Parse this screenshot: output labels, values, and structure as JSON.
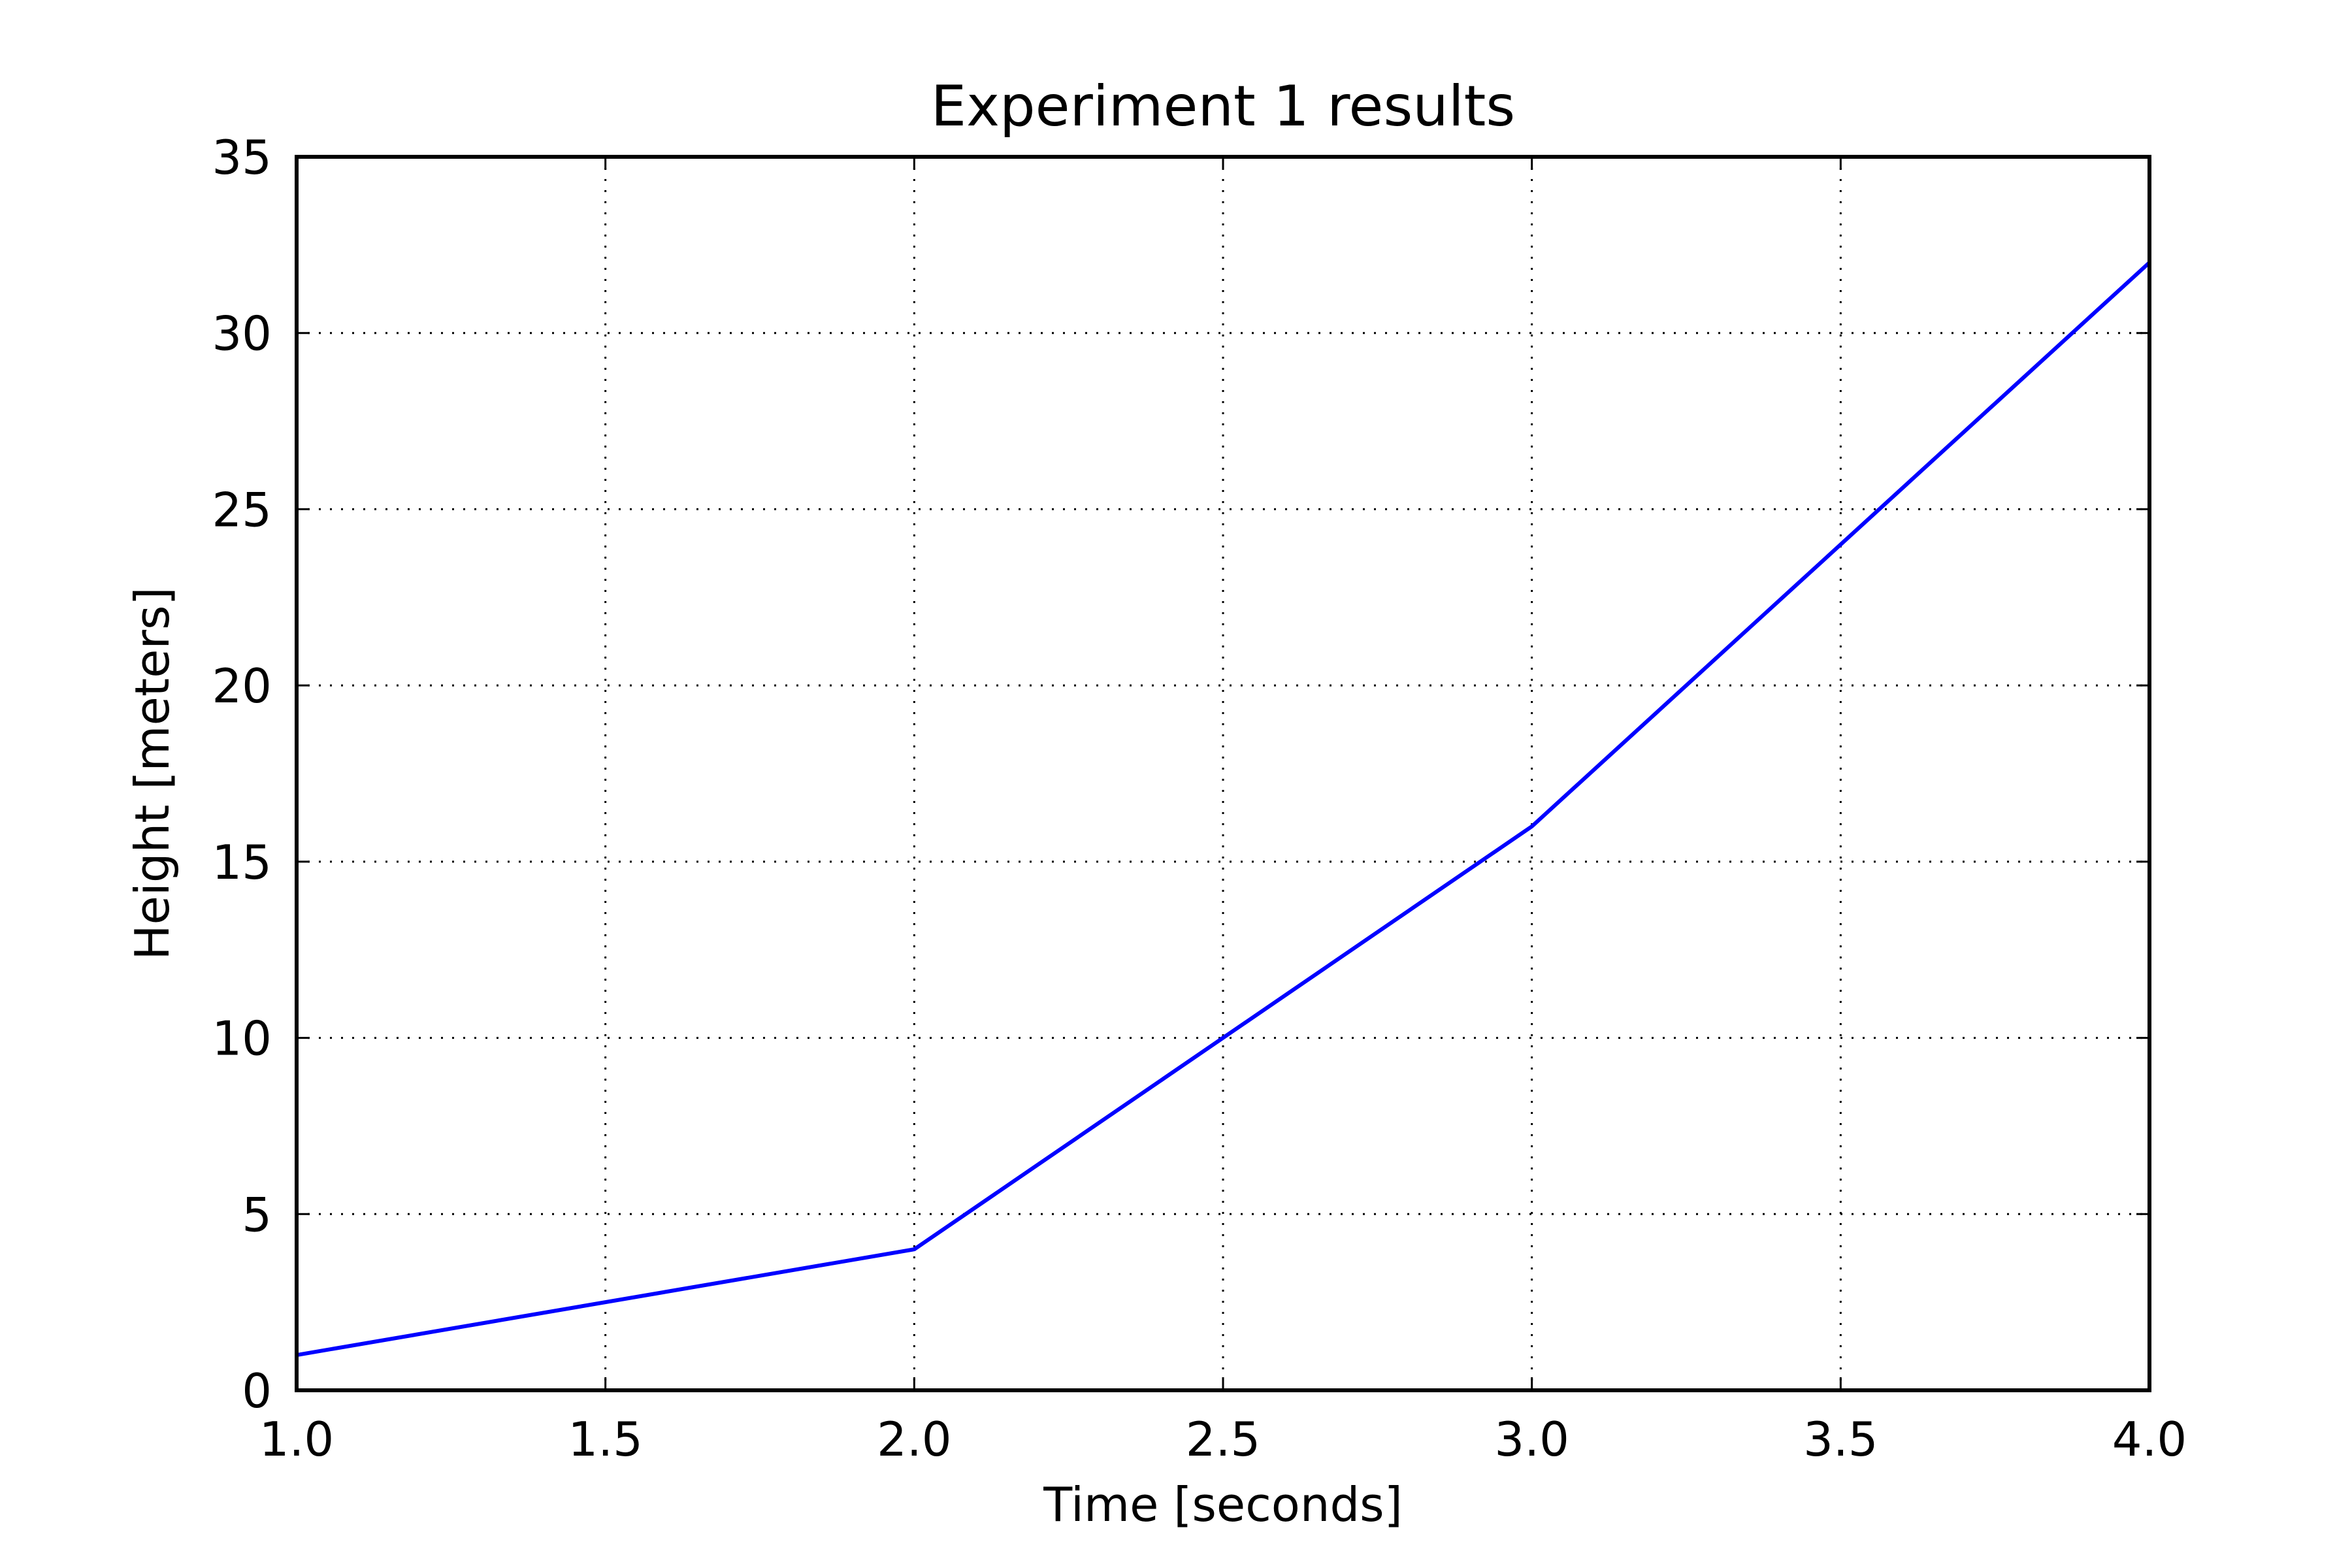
{
  "chart_data": {
    "type": "line",
    "title": "Experiment 1 results",
    "xlabel": "Time [seconds]",
    "ylabel": "Height [meters]",
    "xlim": [
      1.0,
      4.0
    ],
    "ylim": [
      0,
      35
    ],
    "xticks": [
      1.0,
      1.5,
      2.0,
      2.5,
      3.0,
      3.5,
      4.0
    ],
    "xtick_labels": [
      "1.0",
      "1.5",
      "2.0",
      "2.5",
      "3.0",
      "3.5",
      "4.0"
    ],
    "yticks": [
      0,
      5,
      10,
      15,
      20,
      25,
      30,
      35
    ],
    "ytick_labels": [
      "0",
      "5",
      "10",
      "15",
      "20",
      "25",
      "30",
      "35"
    ],
    "grid": true,
    "series": [
      {
        "color": "#0000ff",
        "x": [
          1,
          2,
          3,
          4
        ],
        "y": [
          1,
          4,
          16,
          32
        ]
      }
    ]
  }
}
